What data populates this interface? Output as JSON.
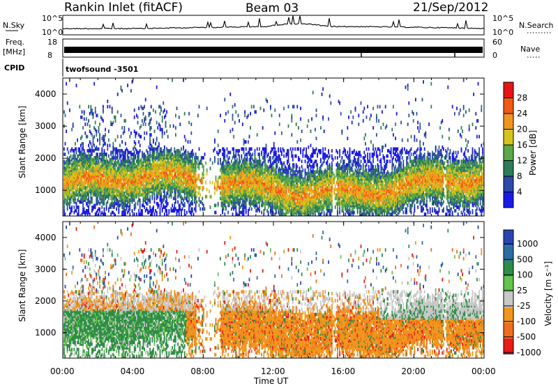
{
  "header": {
    "station": "Rankin Inlet (fitACF)",
    "beam": "Beam 03",
    "date": "21/Sep/2012"
  },
  "strips": {
    "nsky_label": "N.Sky",
    "nsky_ticks": [
      "10^5",
      "10^0"
    ],
    "nsearch_label": "N.Search",
    "nsearch_ticks": [
      "10^5",
      "10^0"
    ],
    "freq_label": "Freq.",
    "freq_unit": "[MHz]",
    "freq_ticks": [
      "18",
      "8"
    ],
    "nave_label": "Nave",
    "nave_ticks": [
      "60",
      "0"
    ],
    "cpid_label": "CPID",
    "cpid_value": "twofsound -3501"
  },
  "chart_data": [
    {
      "type": "heatmap",
      "name": "power",
      "ylabel": "Slant Range [km]",
      "ylim": [
        200,
        4500
      ],
      "yticks": [
        "1000",
        "2000",
        "3000",
        "4000"
      ],
      "colorbar_label": "Power [dB]",
      "colorbar_ticks": [
        "4",
        "8",
        "12",
        "16",
        "20",
        "24",
        "28"
      ],
      "colors": [
        "#1a1ae6",
        "#2c4aa8",
        "#2e7c5a",
        "#5aa84a",
        "#d4c51c",
        "#f0961e",
        "#f05a14",
        "#e61414"
      ]
    },
    {
      "type": "heatmap",
      "name": "velocity",
      "ylabel": "Slant Range [km]",
      "ylim": [
        200,
        4500
      ],
      "yticks": [
        "1000",
        "2000",
        "3000",
        "4000"
      ],
      "colorbar_label": "Velocity [m s⁻¹]",
      "colorbar_ticks": [
        "1000",
        "500",
        "100",
        "25",
        "-25",
        "-100",
        "-500",
        "-1000"
      ],
      "colors": [
        "#2a44b4",
        "#2c6ea0",
        "#2e8c46",
        "#62c44a",
        "#c8c8c8",
        "#f0961e",
        "#ee6e1e",
        "#e81a1a"
      ]
    }
  ],
  "time_axis": {
    "label": "Time UT",
    "ticks": [
      "00:00",
      "04:00",
      "08:00",
      "12:00",
      "16:00",
      "20:00",
      "00:00"
    ]
  }
}
